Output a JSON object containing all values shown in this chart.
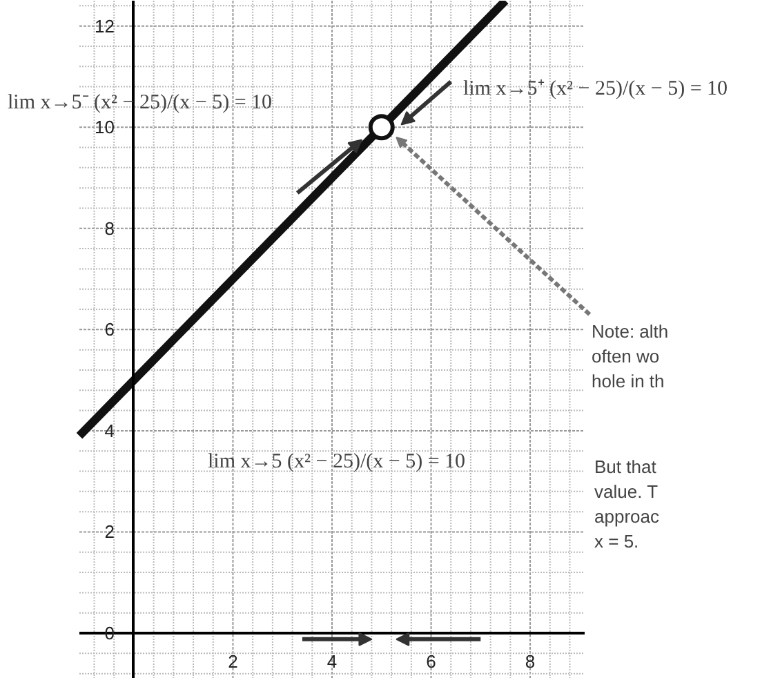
{
  "chart_data": {
    "type": "line",
    "series": [
      {
        "type": "line",
        "color": "#111111",
        "x": [
          -1.1,
          5,
          7.5
        ],
        "values": [
          3.9,
          10,
          12.5
        ],
        "marker": "none"
      },
      {
        "type": "scatter",
        "color": "#111111",
        "x": [
          5
        ],
        "values": [
          10
        ],
        "marker": "circle"
      }
    ],
    "xlim": [
      -1.1,
      9.1
    ],
    "ylim": [
      -0.9,
      12.5
    ],
    "xticks": [
      {
        "value": 0,
        "label": null
      },
      2,
      4,
      6,
      8
    ],
    "yticks": [
      0,
      2,
      4,
      6,
      8,
      10,
      12
    ],
    "grid": true,
    "annotations": [
      "lim x→5⁻ (x² − 25)/(x − 5) = 10",
      "lim x→5⁺ (x² − 25)/(x − 5) = 10",
      "lim x→5 (x² − 25)/(x − 5) = 10",
      "Note: alth\noften wo\nhole in th",
      "But that\nvalue.  T\napproac\nx = 5."
    ]
  }
}
